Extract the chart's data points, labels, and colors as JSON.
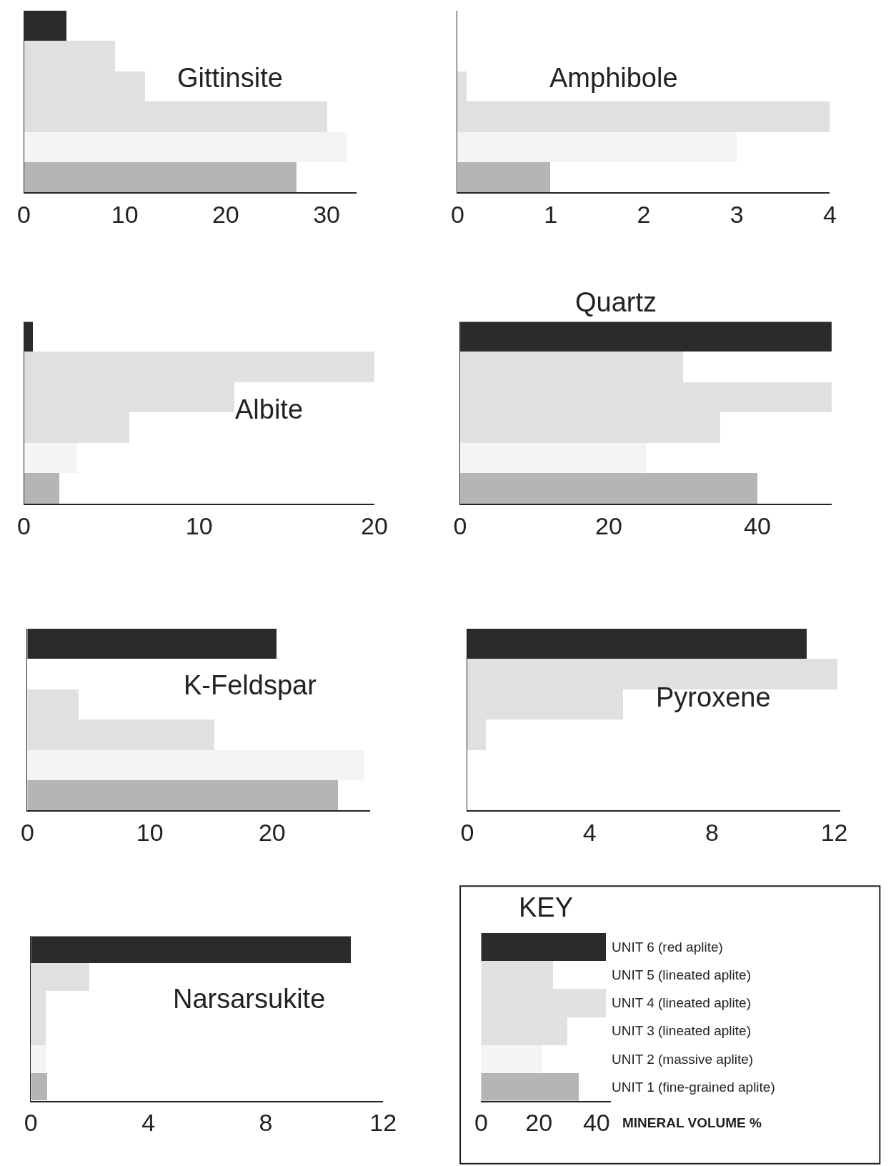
{
  "chart_data": [
    {
      "type": "bar",
      "orientation": "horizontal",
      "title": "Gittinsite",
      "categories": [
        null,
        null,
        null,
        null,
        null,
        null
      ],
      "values": [
        4.2,
        9,
        12,
        30,
        32,
        27
      ],
      "colors": [
        "#2b2b2b",
        "#e0e0e0",
        "#e0e0e0",
        "#e0e0e0",
        "#f4f4f4",
        "#b5b5b5"
      ],
      "xlim": [
        0,
        33
      ],
      "xticks": [
        0,
        10,
        20,
        30
      ],
      "tick_labels": "x"
    },
    {
      "type": "bar",
      "orientation": "horizontal",
      "title": "Amphibole",
      "categories": [
        null,
        null,
        null,
        null,
        null,
        null
      ],
      "values": [
        0,
        0,
        0.1,
        4,
        3,
        1
      ],
      "colors": [
        "#2b2b2b",
        "#e0e0e0",
        "#e0e0e0",
        "#e0e0e0",
        "#f4f4f4",
        "#b5b5b5"
      ],
      "xlim": [
        0,
        4
      ],
      "xticks": [
        0,
        1,
        2,
        3,
        4
      ],
      "tick_labels": "x"
    },
    {
      "type": "bar",
      "orientation": "horizontal",
      "title": "Albite",
      "categories": [
        null,
        null,
        null,
        null,
        null,
        null
      ],
      "values": [
        0.5,
        20,
        12,
        6,
        3,
        2
      ],
      "colors": [
        "#2b2b2b",
        "#e0e0e0",
        "#e0e0e0",
        "#e0e0e0",
        "#f4f4f4",
        "#b5b5b5"
      ],
      "xlim": [
        0,
        20
      ],
      "xticks": [
        0,
        10,
        20
      ],
      "tick_labels": "x"
    },
    {
      "type": "bar",
      "orientation": "horizontal",
      "title": "Quartz",
      "categories": [
        null,
        null,
        null,
        null,
        null,
        null
      ],
      "values": [
        50,
        30,
        50,
        35,
        25,
        40
      ],
      "colors": [
        "#2b2b2b",
        "#e0e0e0",
        "#e0e0e0",
        "#e0e0e0",
        "#f4f4f4",
        "#b5b5b5"
      ],
      "xlim": [
        0,
        50
      ],
      "xticks": [
        0,
        20,
        40
      ],
      "tick_labels": "x"
    },
    {
      "type": "bar",
      "orientation": "horizontal",
      "title": "K-Feldspar",
      "categories": [
        null,
        null,
        null,
        null,
        null,
        null
      ],
      "values": [
        20.4,
        0,
        4.2,
        15.3,
        27.5,
        25.4
      ],
      "colors": [
        "#2b2b2b",
        "#e0e0e0",
        "#e0e0e0",
        "#e0e0e0",
        "#f4f4f4",
        "#b5b5b5"
      ],
      "xlim": [
        0,
        28
      ],
      "xticks": [
        0,
        10,
        20
      ],
      "tick_labels": "x"
    },
    {
      "type": "bar",
      "orientation": "horizontal",
      "title": "Pyroxene",
      "categories": [
        null,
        null,
        null,
        null,
        null,
        null
      ],
      "values": [
        11.1,
        12.1,
        5.1,
        0.6,
        0,
        0
      ],
      "colors": [
        "#2b2b2b",
        "#e0e0e0",
        "#e0e0e0",
        "#e0e0e0",
        "#f4f4f4",
        "#b5b5b5"
      ],
      "xlim": [
        0,
        12.2
      ],
      "xticks": [
        0,
        4,
        8,
        12
      ],
      "tick_labels": "x"
    },
    {
      "type": "bar",
      "orientation": "horizontal",
      "title": "Narsarsukite",
      "categories": [
        null,
        null,
        null,
        null,
        null,
        null
      ],
      "values": [
        10.9,
        2,
        0.5,
        0.5,
        0.5,
        0.55
      ],
      "colors": [
        "#2b2b2b",
        "#e0e0e0",
        "#e0e0e0",
        "#e0e0e0",
        "#f4f4f4",
        "#b5b5b5"
      ],
      "xlim": [
        0,
        12
      ],
      "xticks": [
        0,
        4,
        8,
        12
      ],
      "tick_labels": "x"
    },
    {
      "type": "bar",
      "orientation": "horizontal",
      "title": "KEY",
      "categories": [
        "UNIT 6 (red aplite)",
        "UNIT 5 (lineated aplite)",
        "UNIT 4 (lineated aplite)",
        "UNIT 3 (lineated aplite)",
        "UNIT 2 (massive aplite)",
        "UNIT 1 (fine-grained aplite)"
      ],
      "values": [
        43.5,
        25,
        43.5,
        30,
        21,
        34
      ],
      "colors": [
        "#2b2b2b",
        "#e0e0e0",
        "#e0e0e0",
        "#e0e0e0",
        "#f4f4f4",
        "#b5b5b5"
      ],
      "xlim": [
        0,
        45
      ],
      "xticks": [
        0,
        20,
        40
      ],
      "xlabel": "MINERAL VOLUME %"
    }
  ]
}
